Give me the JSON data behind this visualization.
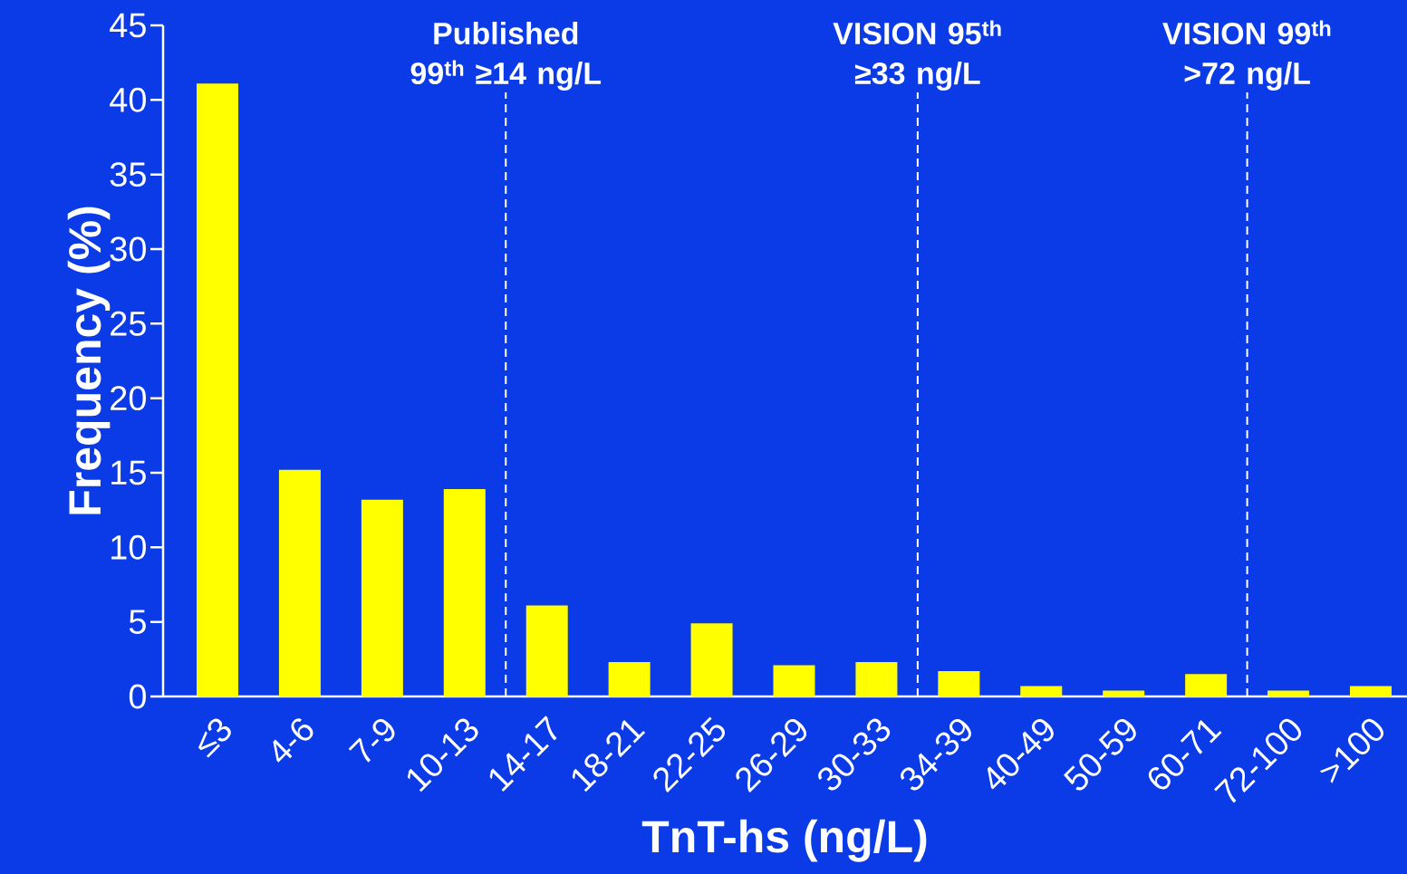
{
  "chart_data": {
    "type": "bar",
    "xlabel": "TnT-hs (ng/L)",
    "ylabel": "Frequency (%)",
    "categories": [
      "≤3",
      "4-6",
      "7-9",
      "10-13",
      "14-17",
      "18-21",
      "22-25",
      "26-29",
      "30-33",
      "34-39",
      "40-49",
      "50-59",
      "60-71",
      "72-100",
      ">100"
    ],
    "values": [
      41.1,
      15.2,
      13.2,
      13.9,
      6.1,
      2.3,
      4.9,
      2.1,
      2.3,
      1.7,
      0.7,
      0.4,
      1.5,
      0.4,
      0.7
    ],
    "color": "#ffff00",
    "ylim": [
      0,
      45
    ],
    "yticks": [
      0,
      5,
      10,
      15,
      20,
      25,
      30,
      35,
      40,
      45
    ],
    "annotations": [
      "Published 99$^{th}$ ≥14 ng/L",
      "VISION 95$^{th}$ ≥33 ng/L",
      "VISION 99$^{th}$ >72 ng/L"
    ],
    "grid": false
  }
}
